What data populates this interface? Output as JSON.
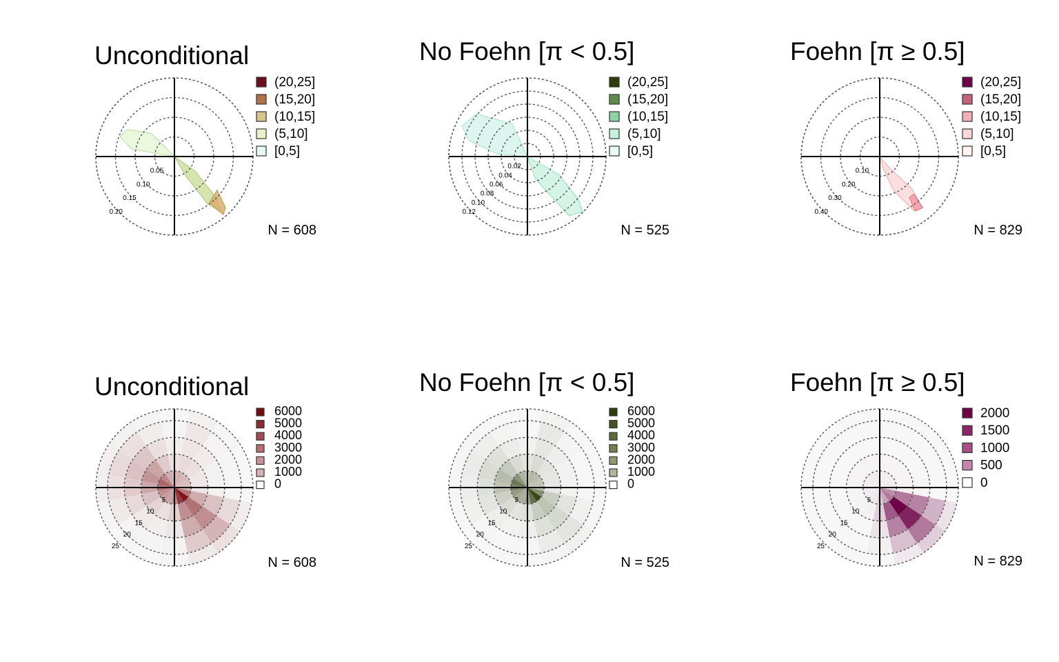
{
  "figure": {
    "background": "#ffffff",
    "ring_color": "#555555",
    "axis_color": "#000000"
  },
  "chart_data": [
    {
      "type": "polar-frequency",
      "title": "Unconditional",
      "n_label": "N = 608",
      "r_ticks": [
        "0.05",
        "0.10",
        "0.15",
        "0.20"
      ],
      "r_max": 0.2,
      "legend": [
        "(20,25]",
        "(15,20]",
        "(10,15]",
        "(5,10]",
        "[0,5]"
      ],
      "legend_colors": [
        "#6b0f1a",
        "#b0724a",
        "#d8c48e",
        "#e8f3cb",
        "#e6f8f1"
      ],
      "fills": [
        {
          "color": "#e6f8d8",
          "stroke": "#bcd9a6",
          "pts": [
            [
              0,
              0
            ],
            [
              315,
              0.09
            ],
            [
              300,
              0.15
            ],
            [
              290,
              0.16
            ],
            [
              280,
              0.12
            ],
            [
              0,
              0
            ]
          ]
        },
        {
          "color": "#cfe0a0",
          "stroke": "#b0c380",
          "pts": [
            [
              0,
              0
            ],
            [
              125,
              0.07
            ],
            [
              135,
              0.17
            ],
            [
              140,
              0.2
            ],
            [
              145,
              0.16
            ],
            [
              150,
              0.06
            ],
            [
              0,
              0
            ]
          ]
        },
        {
          "color": "#d8b070",
          "stroke": "#c29a5b",
          "pts": [
            [
              128,
              0.15
            ],
            [
              135,
              0.2
            ],
            [
              140,
              0.21
            ],
            [
              143,
              0.16
            ],
            [
              128,
              0.15
            ]
          ]
        }
      ]
    },
    {
      "type": "polar-frequency",
      "title": "No Foehn [π < 0.5]",
      "n_label": "N = 525",
      "r_ticks": [
        "0.02",
        "0.04",
        "0.06",
        "0.08",
        "0.10",
        "0.12"
      ],
      "r_max": 0.12,
      "legend": [
        "(20,25]",
        "(15,20]",
        "(10,15]",
        "(5,10]",
        "[0,5]"
      ],
      "legend_colors": [
        "#2e3d0a",
        "#5e8f4a",
        "#8fd3a6",
        "#c7f0df",
        "#eafaf3"
      ],
      "fills": [
        {
          "color": "#d6f5ec",
          "stroke": "#a9e3cf",
          "pts": [
            [
              0,
              0
            ],
            [
              335,
              0.06
            ],
            [
              310,
              0.11
            ],
            [
              295,
              0.12
            ],
            [
              285,
              0.1
            ],
            [
              275,
              0.05
            ],
            [
              0,
              0
            ]
          ]
        },
        {
          "color": "#ccf2e2",
          "stroke": "#8fdcb9",
          "pts": [
            [
              0,
              0
            ],
            [
              120,
              0.06
            ],
            [
              130,
              0.11
            ],
            [
              135,
              0.13
            ],
            [
              145,
              0.12
            ],
            [
              160,
              0.04
            ],
            [
              0,
              0
            ]
          ]
        }
      ]
    },
    {
      "type": "polar-frequency",
      "title": "Foehn [π ≥ 0.5]",
      "n_label": "N = 829",
      "r_ticks": [
        "0.10",
        "0.20",
        "0.30",
        "0.40"
      ],
      "r_max": 0.4,
      "legend": [
        "(20,25]",
        "(15,20]",
        "(10,15]",
        "(5,10]",
        "[0,5]"
      ],
      "legend_colors": [
        "#6e0046",
        "#c4657e",
        "#f2b0b6",
        "#fbd6d6",
        "#fff4f2"
      ],
      "fills": [
        {
          "color": "#fcd9d9",
          "stroke": "#f0a8ab",
          "pts": [
            [
              0,
              0
            ],
            [
              140,
              0.08
            ],
            [
              135,
              0.25
            ],
            [
              140,
              0.37
            ],
            [
              148,
              0.35
            ],
            [
              158,
              0.2
            ],
            [
              165,
              0.06
            ],
            [
              0,
              0
            ]
          ]
        },
        {
          "color": "#ef9fa8",
          "stroke": "#d9707f",
          "pts": [
            [
              138,
              0.28
            ],
            [
              140,
              0.37
            ],
            [
              147,
              0.36
            ],
            [
              144,
              0.28
            ],
            [
              138,
              0.28
            ]
          ]
        }
      ]
    },
    {
      "type": "polar-heatmap",
      "title": "Unconditional",
      "n_label": "N = 608",
      "r_ticks": [
        "5",
        "10",
        "15",
        "20",
        "25"
      ],
      "r_max": 25,
      "legend": [
        "6000",
        "5000",
        "4000",
        "3000",
        "2000",
        "1000",
        "0"
      ],
      "legend_colors": [
        "#7a0a10",
        "#8e2a33",
        "#a44c55",
        "#b86f76",
        "#c99196",
        "#d9b1b4",
        "#ffffff"
      ],
      "max_count": 6500,
      "sectors": [
        {
          "dir": 0,
          "counts": [
            1200,
            300,
            80,
            20,
            5
          ]
        },
        {
          "dir": 22.5,
          "counts": [
            1300,
            400,
            200,
            180,
            60
          ]
        },
        {
          "dir": 45,
          "counts": [
            1100,
            300,
            120,
            40,
            10
          ]
        },
        {
          "dir": 67.5,
          "counts": [
            1000,
            200,
            60,
            10,
            0
          ]
        },
        {
          "dir": 90,
          "counts": [
            1000,
            200,
            50,
            10,
            0
          ]
        },
        {
          "dir": 112.5,
          "counts": [
            2800,
            1400,
            900,
            400,
            100
          ]
        },
        {
          "dir": 135,
          "counts": [
            6200,
            3000,
            2200,
            1200,
            300
          ]
        },
        {
          "dir": 157.5,
          "counts": [
            4800,
            2200,
            1400,
            700,
            150
          ]
        },
        {
          "dir": 180,
          "counts": [
            2200,
            600,
            200,
            50,
            10
          ]
        },
        {
          "dir": 202.5,
          "counts": [
            1600,
            300,
            80,
            20,
            0
          ]
        },
        {
          "dir": 225,
          "counts": [
            1800,
            500,
            150,
            30,
            0
          ]
        },
        {
          "dir": 247.5,
          "counts": [
            2200,
            900,
            400,
            150,
            30
          ]
        },
        {
          "dir": 270,
          "counts": [
            3000,
            1500,
            700,
            300,
            80
          ]
        },
        {
          "dir": 292.5,
          "counts": [
            3400,
            2000,
            900,
            400,
            80
          ]
        },
        {
          "dir": 315,
          "counts": [
            2400,
            1600,
            800,
            300,
            60
          ]
        },
        {
          "dir": 337.5,
          "counts": [
            1400,
            700,
            300,
            100,
            20
          ]
        }
      ]
    },
    {
      "type": "polar-heatmap",
      "title": "No Foehn [π < 0.5]",
      "n_label": "N = 525",
      "r_ticks": [
        "5",
        "10",
        "15",
        "20",
        "25"
      ],
      "r_max": 25,
      "legend": [
        "6000",
        "5000",
        "4000",
        "3000",
        "2000",
        "1000",
        "0"
      ],
      "legend_colors": [
        "#2e3d0a",
        "#43561f",
        "#5b6c3a",
        "#737f55",
        "#8f9a73",
        "#b0b89a",
        "#ffffff"
      ],
      "max_count": 6500,
      "sectors": [
        {
          "dir": 0,
          "counts": [
            1300,
            300,
            60,
            10,
            0
          ]
        },
        {
          "dir": 22.5,
          "counts": [
            1500,
            500,
            250,
            200,
            50
          ]
        },
        {
          "dir": 45,
          "counts": [
            1300,
            300,
            100,
            30,
            0
          ]
        },
        {
          "dir": 67.5,
          "counts": [
            1200,
            250,
            50,
            10,
            0
          ]
        },
        {
          "dir": 90,
          "counts": [
            1300,
            250,
            50,
            10,
            0
          ]
        },
        {
          "dir": 112.5,
          "counts": [
            3000,
            900,
            300,
            80,
            10
          ]
        },
        {
          "dir": 135,
          "counts": [
            6000,
            1200,
            600,
            300,
            80
          ]
        },
        {
          "dir": 157.5,
          "counts": [
            4200,
            900,
            400,
            150,
            30
          ]
        },
        {
          "dir": 180,
          "counts": [
            2300,
            400,
            100,
            20,
            0
          ]
        },
        {
          "dir": 202.5,
          "counts": [
            1800,
            300,
            60,
            10,
            0
          ]
        },
        {
          "dir": 225,
          "counts": [
            2000,
            500,
            100,
            20,
            0
          ]
        },
        {
          "dir": 247.5,
          "counts": [
            2500,
            800,
            300,
            80,
            10
          ]
        },
        {
          "dir": 270,
          "counts": [
            3500,
            1200,
            400,
            120,
            20
          ]
        },
        {
          "dir": 292.5,
          "counts": [
            4000,
            1400,
            500,
            150,
            20
          ]
        },
        {
          "dir": 315,
          "counts": [
            2800,
            1000,
            400,
            100,
            10
          ]
        },
        {
          "dir": 337.5,
          "counts": [
            1700,
            500,
            150,
            40,
            0
          ]
        }
      ]
    },
    {
      "type": "polar-heatmap",
      "title": "Foehn [π ≥ 0.5]",
      "n_label": "N = 829",
      "r_ticks": [
        "5",
        "10",
        "15",
        "20",
        "25"
      ],
      "r_max": 25,
      "legend": [
        "2000",
        "1500",
        "1000",
        "500",
        "0"
      ],
      "legend_colors": [
        "#6e0046",
        "#8c2468",
        "#a64e88",
        "#c486ad",
        "#ffffff"
      ],
      "max_count": 2200,
      "sectors": [
        {
          "dir": 0,
          "counts": [
            40,
            10,
            0,
            0,
            0
          ]
        },
        {
          "dir": 22.5,
          "counts": [
            30,
            10,
            0,
            0,
            0
          ]
        },
        {
          "dir": 45,
          "counts": [
            30,
            10,
            0,
            0,
            0
          ]
        },
        {
          "dir": 67.5,
          "counts": [
            40,
            10,
            0,
            0,
            0
          ]
        },
        {
          "dir": 90,
          "counts": [
            60,
            20,
            10,
            0,
            0
          ]
        },
        {
          "dir": 112.5,
          "counts": [
            700,
            900,
            800,
            400,
            80
          ]
        },
        {
          "dir": 135,
          "counts": [
            900,
            2200,
            1800,
            900,
            200
          ]
        },
        {
          "dir": 157.5,
          "counts": [
            500,
            1200,
            800,
            300,
            50
          ]
        },
        {
          "dir": 180,
          "counts": [
            200,
            200,
            80,
            20,
            0
          ]
        },
        {
          "dir": 202.5,
          "counts": [
            60,
            20,
            0,
            0,
            0
          ]
        },
        {
          "dir": 225,
          "counts": [
            40,
            10,
            0,
            0,
            0
          ]
        },
        {
          "dir": 247.5,
          "counts": [
            40,
            10,
            0,
            0,
            0
          ]
        },
        {
          "dir": 270,
          "counts": [
            40,
            10,
            0,
            0,
            0
          ]
        },
        {
          "dir": 292.5,
          "counts": [
            40,
            10,
            0,
            0,
            0
          ]
        },
        {
          "dir": 315,
          "counts": [
            40,
            10,
            0,
            0,
            0
          ]
        },
        {
          "dir": 337.5,
          "counts": [
            40,
            10,
            0,
            0,
            0
          ]
        }
      ]
    }
  ]
}
